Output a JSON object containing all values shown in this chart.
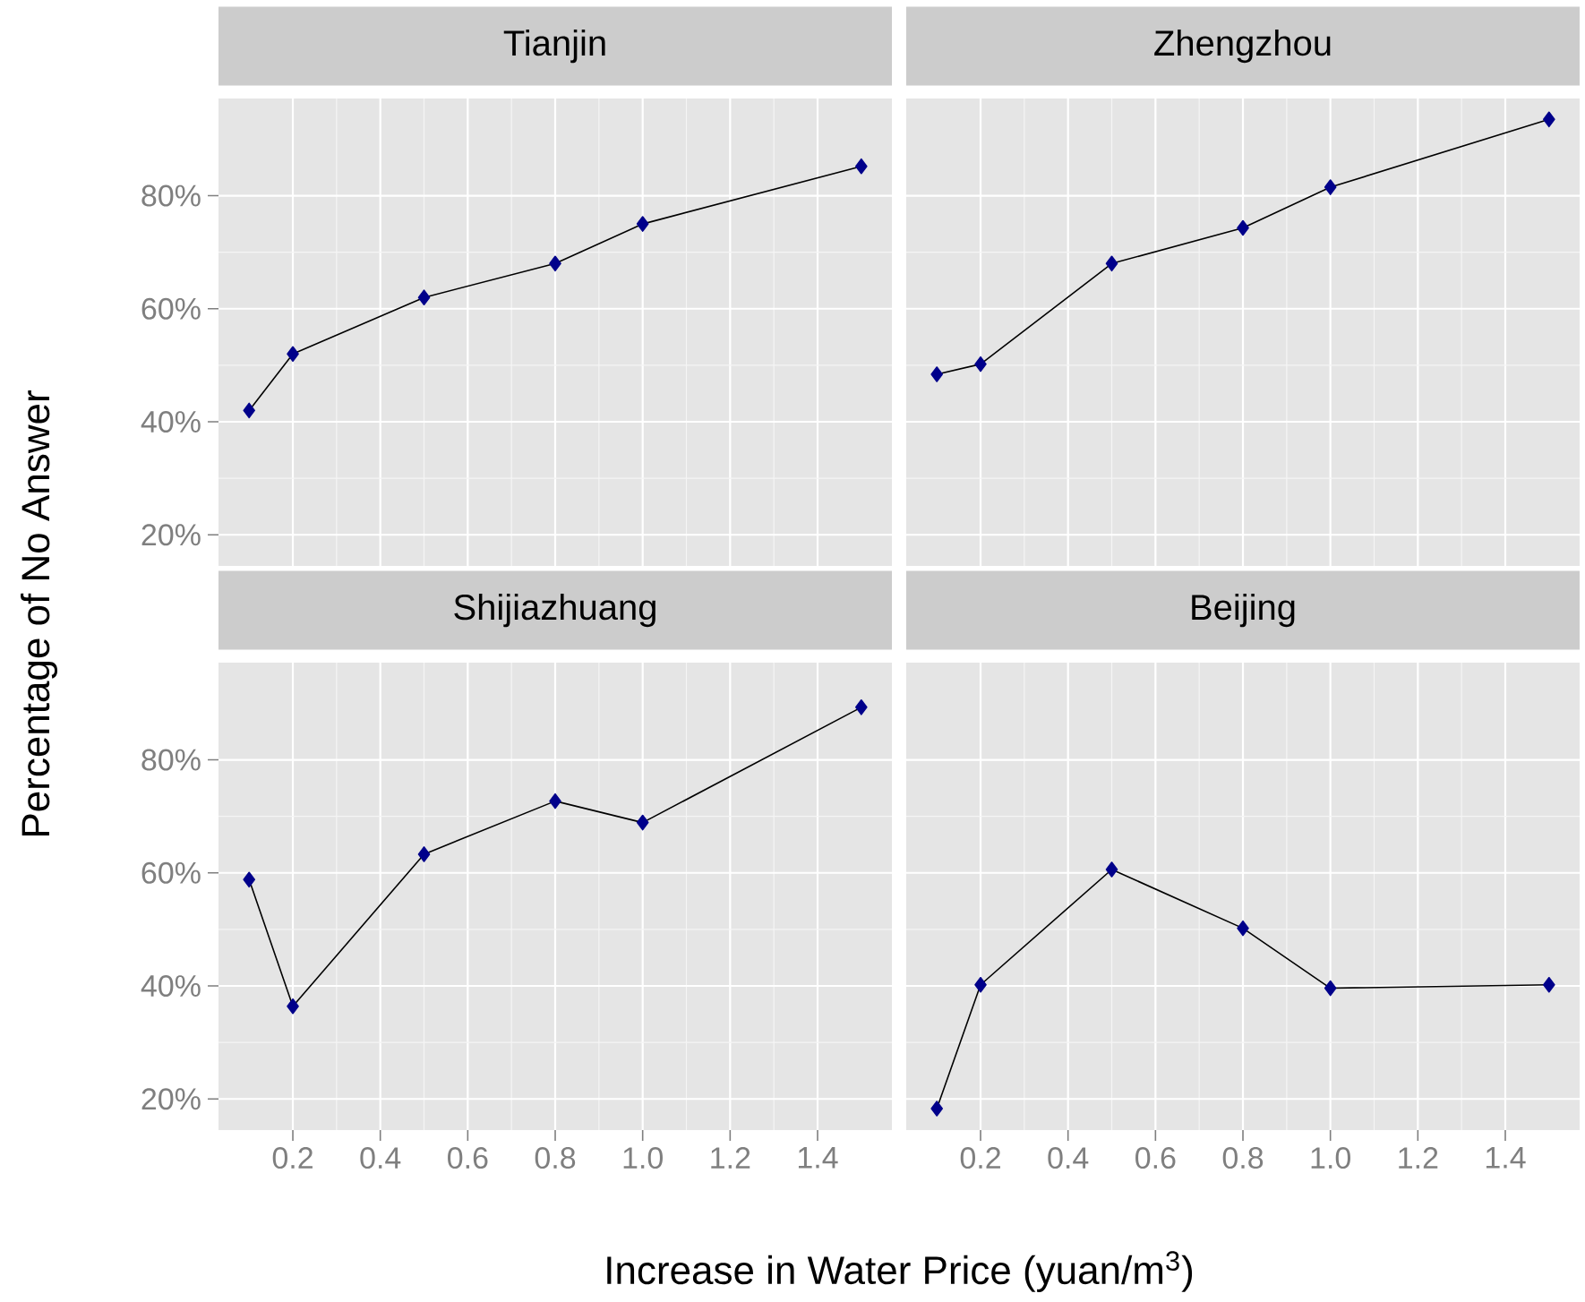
{
  "chart_data": [
    {
      "type": "line",
      "title": "Tianjin",
      "ylabel": "Percentage of No Answer",
      "x": [
        0.1,
        0.2,
        0.5,
        0.8,
        1.0,
        1.5
      ],
      "values": [
        42,
        52,
        62,
        68,
        75,
        85.2
      ],
      "color": "#00008b",
      "marker": "diamond",
      "grid": true,
      "tick_labels": "y",
      "xlim": [
        0.03,
        1.57
      ],
      "ylim": [
        14.5,
        97.2
      ],
      "xticks": [
        {
          "value": 0.2,
          "label": null
        },
        {
          "value": 0.4,
          "label": null
        },
        {
          "value": 0.6,
          "label": null
        },
        {
          "value": 0.8,
          "label": null
        },
        {
          "value": 1.0,
          "label": null
        },
        {
          "value": 1.2,
          "label": null
        },
        {
          "value": 1.4,
          "label": null
        }
      ],
      "yticks": [
        {
          "value": 20,
          "label": "20%"
        },
        {
          "value": 40,
          "label": "40%"
        },
        {
          "value": 60,
          "label": "60%"
        },
        {
          "value": 80,
          "label": "80%"
        }
      ]
    },
    {
      "type": "line",
      "title": "Zhengzhou",
      "x": [
        0.1,
        0.2,
        0.5,
        0.8,
        1.0,
        1.5
      ],
      "values": [
        48.4,
        50.2,
        68,
        74.3,
        81.5,
        93.5
      ],
      "color": "#00008b",
      "marker": "diamond",
      "grid": true,
      "tick_labels": false,
      "xlim": [
        0.03,
        1.57
      ],
      "ylim": [
        14.5,
        97.2
      ],
      "xticks": [
        {
          "value": 0.2,
          "label": null
        },
        {
          "value": 0.4,
          "label": null
        },
        {
          "value": 0.6,
          "label": null
        },
        {
          "value": 0.8,
          "label": null
        },
        {
          "value": 1.0,
          "label": null
        },
        {
          "value": 1.2,
          "label": null
        },
        {
          "value": 1.4,
          "label": null
        }
      ],
      "yticks": [
        {
          "value": 20,
          "label": null
        },
        {
          "value": 40,
          "label": null
        },
        {
          "value": 60,
          "label": null
        },
        {
          "value": 80,
          "label": null
        }
      ]
    },
    {
      "type": "line",
      "title": "Shijiazhuang",
      "xlabel": "Increase in Water Price  (yuan/m$^{3}$)",
      "x": [
        0.1,
        0.2,
        0.5,
        0.8,
        1.0,
        1.5
      ],
      "values": [
        58.8,
        36.4,
        63.3,
        72.7,
        68.9,
        89.3
      ],
      "color": "#00008b",
      "marker": "diamond",
      "grid": true,
      "xlim": [
        0.03,
        1.57
      ],
      "ylim": [
        14.5,
        97.2
      ],
      "xticks": [
        {
          "value": 0.2,
          "label": "0.2"
        },
        {
          "value": 0.4,
          "label": "0.4"
        },
        {
          "value": 0.6,
          "label": "0.6"
        },
        {
          "value": 0.8,
          "label": "0.8"
        },
        {
          "value": 1.0,
          "label": "1.0"
        },
        {
          "value": 1.2,
          "label": "1.2"
        },
        {
          "value": 1.4,
          "label": "1.4"
        }
      ],
      "yticks": [
        {
          "value": 20,
          "label": "20%"
        },
        {
          "value": 40,
          "label": "40%"
        },
        {
          "value": 60,
          "label": "60%"
        },
        {
          "value": 80,
          "label": "80%"
        }
      ]
    },
    {
      "type": "line",
      "title": "Beijing",
      "x": [
        0.1,
        0.2,
        0.5,
        0.8,
        1.0,
        1.5
      ],
      "values": [
        18.3,
        40.2,
        60.6,
        50.2,
        39.6,
        40.2
      ],
      "color": "#00008b",
      "marker": "diamond",
      "grid": true,
      "tick_labels": "x",
      "xlim": [
        0.03,
        1.57
      ],
      "ylim": [
        14.5,
        97.2
      ],
      "xticks": [
        {
          "value": 0.2,
          "label": "0.2"
        },
        {
          "value": 0.4,
          "label": "0.4"
        },
        {
          "value": 0.6,
          "label": "0.6"
        },
        {
          "value": 0.8,
          "label": "0.8"
        },
        {
          "value": 1.0,
          "label": "1.0"
        },
        {
          "value": 1.2,
          "label": "1.2"
        },
        {
          "value": 1.4,
          "label": "1.4"
        }
      ],
      "yticks": [
        {
          "value": 20,
          "label": null
        },
        {
          "value": 40,
          "label": null
        },
        {
          "value": 60,
          "label": null
        },
        {
          "value": 80,
          "label": null
        }
      ]
    }
  ]
}
